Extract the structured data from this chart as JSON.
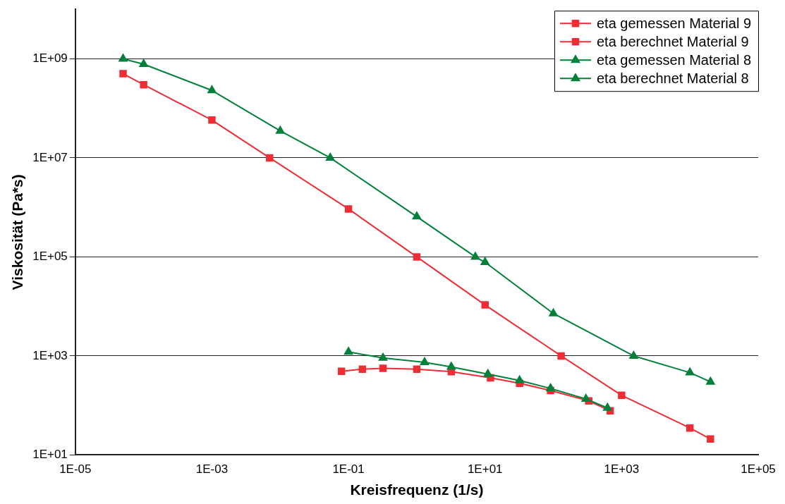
{
  "chart_data": {
    "type": "line",
    "xlabel": "Kreisfrequenz (1/s)",
    "ylabel": "Viskosität (Pa*s)",
    "log": "xy",
    "grid": "y",
    "legend": "top right",
    "line_style": "solid",
    "xlim": [
      1e-05,
      100000.0
    ],
    "xticks": [
      {
        "value": 1e-05,
        "label": "1E-05"
      },
      {
        "value": 0.001,
        "label": "1E-03"
      },
      {
        "value": 0.1,
        "label": "1E-01"
      },
      {
        "value": 10,
        "label": "1E+01"
      },
      {
        "value": 1000,
        "label": "1E+03"
      },
      {
        "value": 100000,
        "label": "1E+05"
      }
    ],
    "ylim": [
      10,
      10000000000.0
    ],
    "yticks": [
      {
        "value": 10,
        "label": "1E+01"
      },
      {
        "value": 1000,
        "label": "1E+03"
      },
      {
        "value": 100000,
        "label": "1E+05"
      },
      {
        "value": 10000000,
        "label": "1E+07"
      },
      {
        "value": 1000000000,
        "label": "1E+09"
      }
    ],
    "series": [
      {
        "name": "eta gemessen Material 9",
        "color": "#ee2d35",
        "marker": "square",
        "x": [
          0.079,
          0.16,
          0.32,
          1,
          3.2,
          12,
          32,
          91,
          330,
          680
        ],
        "values": [
          490,
          540,
          560,
          540,
          480,
          360,
          280,
          200,
          123,
          78
        ]
      },
      {
        "name": "eta berechnet Material 9",
        "color": "#ee2d35",
        "marker": "square",
        "x": [
          5e-05,
          0.0001,
          0.001,
          0.007,
          0.1,
          1,
          10,
          130,
          1000,
          10000,
          20000
        ],
        "values": [
          500000000,
          300000000,
          58000000,
          10000000,
          930000,
          100000,
          10700,
          1000,
          160,
          35,
          21
        ]
      },
      {
        "name": "eta gemessen Material 8",
        "color": "#00803a",
        "marker": "triangle",
        "x": [
          0.1,
          0.32,
          1.3,
          3.2,
          11,
          32,
          91,
          300,
          620
        ],
        "values": [
          1200,
          910,
          740,
          600,
          430,
          320,
          220,
          135,
          89
        ]
      },
      {
        "name": "eta berechnet Material 8",
        "color": "#00803a",
        "marker": "triangle",
        "x": [
          5e-05,
          0.0001,
          0.001,
          0.01,
          0.054,
          1,
          7.2,
          10,
          100,
          1500,
          10000,
          20000
        ],
        "values": [
          1000000000,
          780000000,
          230000000,
          35000000,
          10000000,
          650000,
          100000,
          78000,
          7200,
          1000,
          460,
          300
        ]
      }
    ]
  }
}
